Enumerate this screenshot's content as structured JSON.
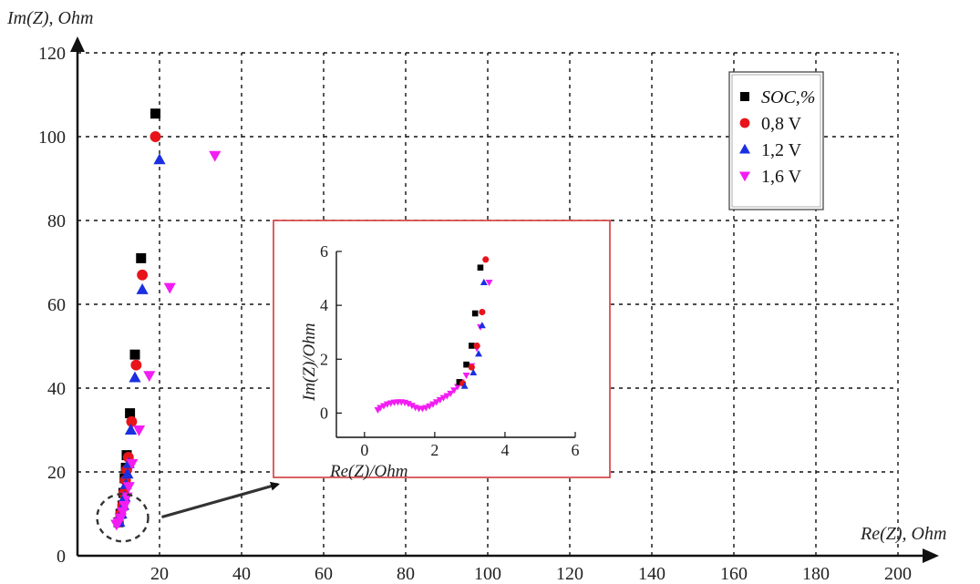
{
  "chart_data": [
    {
      "type": "scatter",
      "title": "",
      "xlabel": "Re(Z), Ohm",
      "ylabel": "Im(Z), Ohm",
      "xlim": [
        0,
        200
      ],
      "ylim": [
        0,
        120
      ],
      "x_ticks": [
        "20",
        "40",
        "60",
        "80",
        "100",
        "120",
        "140",
        "160",
        "180",
        "200"
      ],
      "y_ticks": [
        "0",
        "20",
        "40",
        "60",
        "80",
        "100",
        "120"
      ],
      "x_tick_values": [
        20,
        40,
        60,
        80,
        100,
        120,
        140,
        160,
        180,
        200
      ],
      "y_tick_values": [
        0,
        20,
        40,
        60,
        80,
        100,
        120
      ],
      "grid": true,
      "legend": "top-right",
      "series": [
        {
          "name": "SOC,%",
          "marker": "square",
          "color": "#000000",
          "points": [
            [
              10,
              8
            ],
            [
              10.5,
              10
            ],
            [
              11,
              12
            ],
            [
              11.2,
              15
            ],
            [
              11.5,
              18.5
            ],
            [
              11.8,
              21
            ],
            [
              12,
              24
            ],
            [
              12.8,
              34
            ],
            [
              14,
              48
            ],
            [
              15.5,
              71
            ],
            [
              19,
              105.5
            ]
          ]
        },
        {
          "name": "0,8 V",
          "marker": "circle",
          "color": "#e8141a",
          "points": [
            [
              10,
              8
            ],
            [
              10.5,
              10
            ],
            [
              11,
              12
            ],
            [
              11.3,
              15
            ],
            [
              11.7,
              18
            ],
            [
              12,
              20.5
            ],
            [
              12.4,
              23.5
            ],
            [
              13.2,
              32
            ],
            [
              14.3,
              45.5
            ],
            [
              15.8,
              67
            ],
            [
              19,
              100
            ]
          ]
        },
        {
          "name": "1,2 V",
          "marker": "triangle-up",
          "color": "#1a2fe0",
          "points": [
            [
              10.2,
              8
            ],
            [
              10.7,
              10
            ],
            [
              11.2,
              12
            ],
            [
              11.5,
              14
            ],
            [
              11.8,
              17
            ],
            [
              12.2,
              19.5
            ],
            [
              12.5,
              22
            ],
            [
              13,
              30
            ],
            [
              14,
              42.5
            ],
            [
              15.8,
              63.5
            ],
            [
              20,
              94.5
            ]
          ]
        },
        {
          "name": "1,6 V",
          "marker": "triangle-down",
          "color": "#f21df2",
          "points": [
            [
              9.5,
              7.5
            ],
            [
              10,
              8
            ],
            [
              10.5,
              9
            ],
            [
              11,
              10.5
            ],
            [
              11.5,
              12
            ],
            [
              12,
              14
            ],
            [
              12.5,
              16.5
            ],
            [
              13.3,
              22
            ],
            [
              15,
              30
            ],
            [
              17.5,
              43
            ],
            [
              22.5,
              64
            ],
            [
              33.5,
              95.5
            ]
          ]
        }
      ],
      "annotations": [
        {
          "type": "dashed-circle",
          "around": [
            11,
            8
          ]
        },
        {
          "type": "arrow",
          "from": [
            15,
            7.5
          ],
          "to": [
            48,
            17.5
          ]
        }
      ]
    },
    {
      "type": "scatter",
      "title": "",
      "xlabel": "Re(Z)/Ohm",
      "ylabel": "Im(Z)/Ohm",
      "xlim": [
        -0.8,
        6
      ],
      "ylim": [
        -0.9,
        6
      ],
      "x_ticks": [
        "0",
        "2",
        "4",
        "6"
      ],
      "y_ticks": [
        "0",
        "2",
        "4",
        "6"
      ],
      "x_tick_values": [
        0,
        2,
        4,
        6
      ],
      "y_tick_values": [
        0,
        2,
        4,
        6
      ],
      "grid": false,
      "legend": "none",
      "series": [
        {
          "name": "",
          "marker": "square",
          "color": "#000000",
          "points": [
            [
              2.7,
              1.15
            ],
            [
              2.9,
              1.8
            ],
            [
              3.05,
              2.5
            ],
            [
              3.15,
              3.7
            ],
            [
              3.3,
              5.4
            ]
          ]
        },
        {
          "name": "",
          "marker": "circle",
          "color": "#e8141a",
          "points": [
            [
              2.8,
              1.1
            ],
            [
              3.05,
              1.7
            ],
            [
              3.2,
              2.5
            ],
            [
              3.35,
              3.75
            ],
            [
              3.45,
              5.7
            ]
          ]
        },
        {
          "name": "",
          "marker": "triangle-up",
          "color": "#1a2fe0",
          "points": [
            [
              2.85,
              1.0
            ],
            [
              3.1,
              1.5
            ],
            [
              3.25,
              2.2
            ],
            [
              3.35,
              3.25
            ],
            [
              3.4,
              4.85
            ]
          ]
        },
        {
          "name": "",
          "marker": "triangle-down",
          "color": "#f21df2",
          "points": [
            [
              0.38,
              0.12
            ],
            [
              0.45,
              0.2
            ],
            [
              0.55,
              0.27
            ],
            [
              0.65,
              0.33
            ],
            [
              0.75,
              0.37
            ],
            [
              0.85,
              0.4
            ],
            [
              0.95,
              0.41
            ],
            [
              1.05,
              0.41
            ],
            [
              1.15,
              0.39
            ],
            [
              1.25,
              0.35
            ],
            [
              1.35,
              0.28
            ],
            [
              1.45,
              0.21
            ],
            [
              1.55,
              0.17
            ],
            [
              1.65,
              0.17
            ],
            [
              1.75,
              0.2
            ],
            [
              1.85,
              0.26
            ],
            [
              1.95,
              0.33
            ],
            [
              2.05,
              0.41
            ],
            [
              2.15,
              0.49
            ],
            [
              2.25,
              0.57
            ],
            [
              2.35,
              0.64
            ],
            [
              2.45,
              0.73
            ],
            [
              2.55,
              0.85
            ],
            [
              2.65,
              0.98
            ],
            [
              2.75,
              1.15
            ],
            [
              2.9,
              1.4
            ],
            [
              3.05,
              1.75
            ],
            [
              3.2,
              2.4
            ],
            [
              3.3,
              3.2
            ],
            [
              3.55,
              4.85
            ]
          ]
        }
      ]
    }
  ]
}
